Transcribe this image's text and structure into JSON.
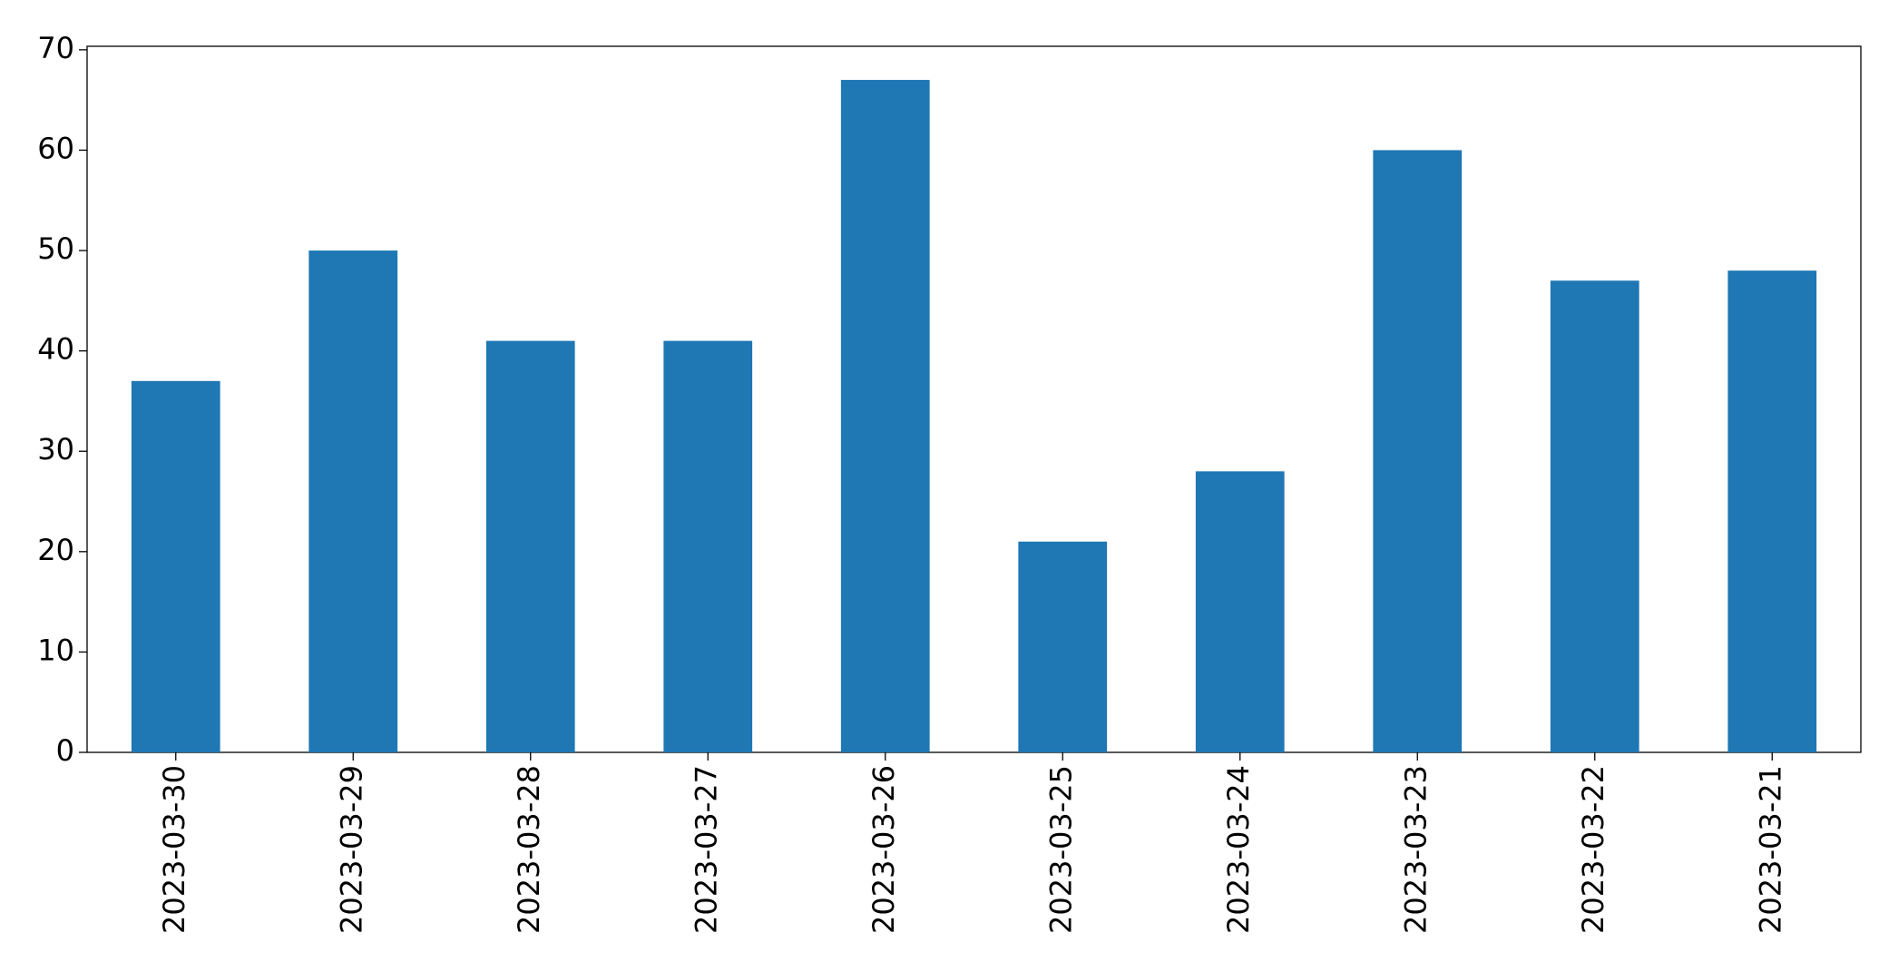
{
  "chart_data": {
    "type": "bar",
    "categories": [
      "2023-03-30",
      "2023-03-29",
      "2023-03-28",
      "2023-03-27",
      "2023-03-26",
      "2023-03-25",
      "2023-03-24",
      "2023-03-23",
      "2023-03-22",
      "2023-03-21"
    ],
    "values": [
      37,
      50,
      41,
      41,
      67,
      21,
      28,
      60,
      47,
      48
    ],
    "color": "#1f77b4",
    "ylim": [
      0,
      70.35
    ],
    "yticks": [
      0,
      10,
      20,
      30,
      40,
      50,
      60,
      70
    ],
    "grid": false
  }
}
